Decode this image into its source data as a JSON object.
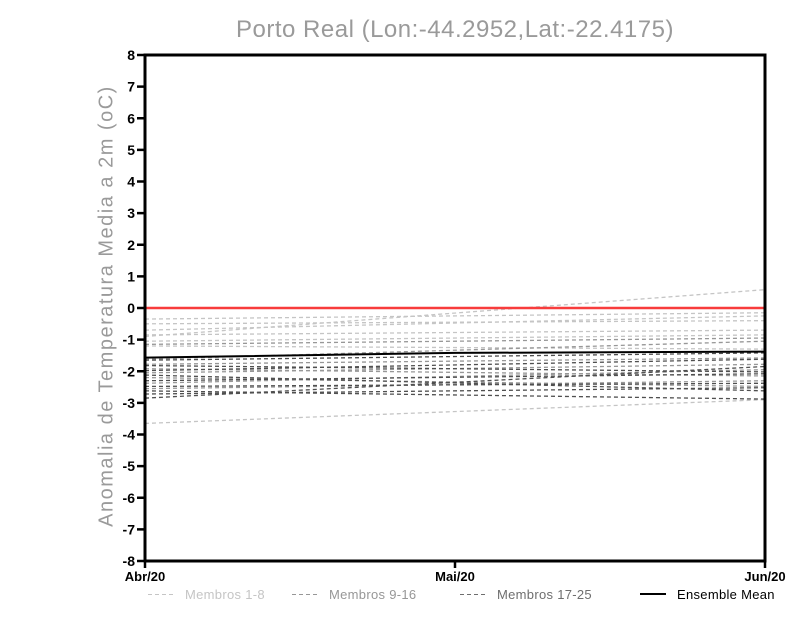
{
  "chart_data": {
    "type": "line",
    "title": "Porto Real (Lon:-44.2952,Lat:-22.4175)",
    "ylabel": "Anomalia de Temperatura Media a 2m (oC)",
    "xlabel": "",
    "x_categories": [
      "Abr/20",
      "Mai/20",
      "Jun/20"
    ],
    "ylim": [
      -8,
      8
    ],
    "yticks": [
      8,
      7,
      6,
      5,
      4,
      3,
      2,
      1,
      0,
      -1,
      -2,
      -3,
      -4,
      -5,
      -6,
      -7,
      -8
    ],
    "grid": false,
    "legend_position": "bottom",
    "axis_color": "#000000",
    "zero_line": {
      "value": 0,
      "color": "#f83c3c"
    },
    "ensemble_mean": {
      "name": "Ensemble Mean",
      "color": "#000000",
      "x": [
        "Abr/20",
        "Mai/20",
        "Jun/20"
      ],
      "values": [
        -1.57,
        -1.42,
        -1.38
      ]
    },
    "member_groups": [
      {
        "name": "Membros 1-8",
        "color": "#c5c5c5",
        "line_style": "dashed",
        "x_span": [
          "Abr/20",
          "Jun/20"
        ],
        "lines": [
          [
            -0.35,
            -0.15
          ],
          [
            -0.5,
            -0.4
          ],
          [
            -0.7,
            -0.25
          ],
          [
            -0.85,
            -0.7
          ],
          [
            -0.9,
            0.58
          ],
          [
            -1.05,
            -0.85
          ],
          [
            -1.2,
            -1.3
          ],
          [
            -3.65,
            -2.9
          ]
        ]
      },
      {
        "name": "Membros 9-16",
        "color": "#979797",
        "line_style": "dashed",
        "x_span": [
          "Abr/20",
          "Jun/20"
        ],
        "lines": [
          [
            -1.15,
            -0.95
          ],
          [
            -1.62,
            -1.05
          ],
          [
            -1.78,
            -1.58
          ],
          [
            -1.92,
            -2.15
          ],
          [
            -2.05,
            -1.78
          ],
          [
            -2.2,
            -2.48
          ],
          [
            -2.38,
            -1.95
          ],
          [
            -2.55,
            -2.3
          ]
        ]
      },
      {
        "name": "Membros 17-25",
        "color": "#4f4f4f",
        "line_style": "dashed",
        "x_span": [
          "Abr/20",
          "Jun/20"
        ],
        "lines": [
          [
            -1.65,
            -1.42
          ],
          [
            -1.82,
            -2.02
          ],
          [
            -1.98,
            -1.62
          ],
          [
            -2.12,
            -2.62
          ],
          [
            -2.3,
            -2.08
          ],
          [
            -2.48,
            -2.38
          ],
          [
            -2.62,
            -2.88
          ],
          [
            -2.72,
            -2.52
          ],
          [
            -2.85,
            -1.85
          ]
        ]
      }
    ],
    "legend": {
      "entries": [
        {
          "label": "Membros 1-8",
          "color": "#c5c5c5",
          "style": "dashed"
        },
        {
          "label": "Membros 9-16",
          "color": "#979797",
          "style": "dashed"
        },
        {
          "label": "Membros 17-25",
          "color": "#6e6e6e",
          "style": "dashed"
        },
        {
          "label": "Ensemble Mean",
          "color": "#000000",
          "style": "solid"
        }
      ]
    }
  }
}
